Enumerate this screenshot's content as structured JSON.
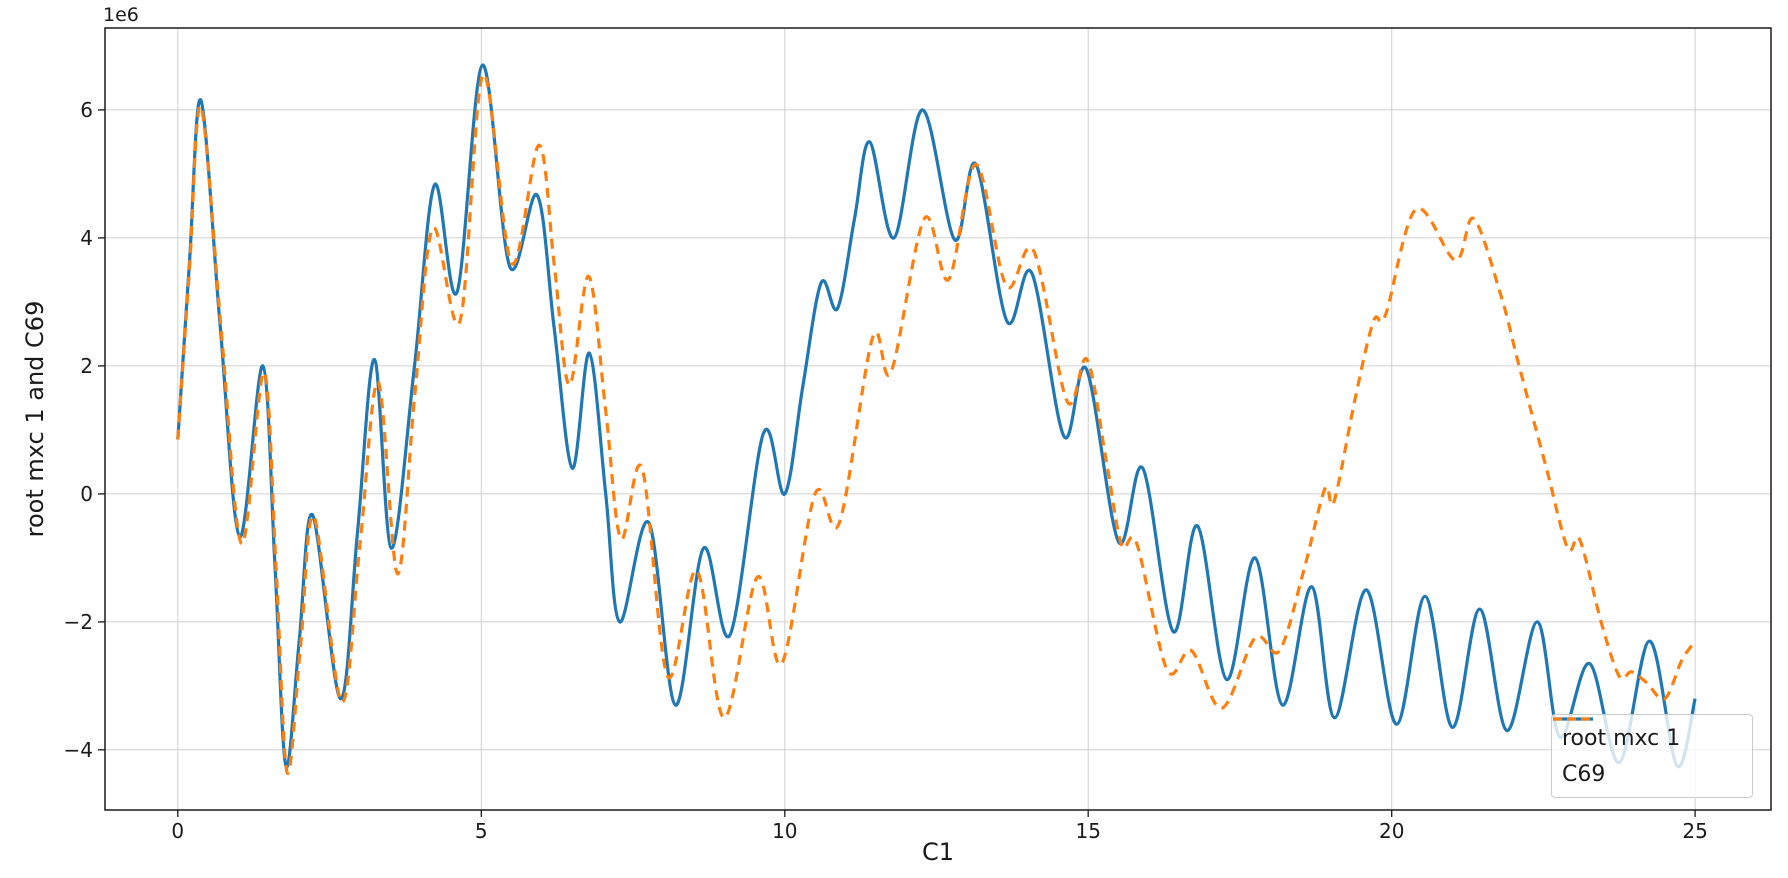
{
  "chart_data": {
    "type": "line",
    "title": "",
    "xlabel": "C1",
    "ylabel": "root mxc 1 and C69",
    "y_offset_label": "1e6",
    "y_values_in": "1e6",
    "xlim": [
      -1.2,
      26.25
    ],
    "ylim": [
      -4.94,
      7.28
    ],
    "grid": true,
    "legend_position": "lower right",
    "x_ticks": {
      "values": [
        0,
        5,
        10,
        15,
        20,
        25
      ],
      "labels": [
        "0",
        "5",
        "10",
        "15",
        "20",
        "25"
      ]
    },
    "y_ticks": {
      "values": [
        -4,
        -2,
        0,
        2,
        4,
        6
      ],
      "labels": [
        "−4",
        "−2",
        "0",
        "2",
        "4",
        "6"
      ]
    },
    "series": [
      {
        "name": "root mxc 1",
        "color": "#1f77b4",
        "line_style": "solid",
        "points": [
          [
            0,
            0.85
          ],
          [
            0.19,
            3.6
          ],
          [
            0.38,
            6.15
          ],
          [
            0.7,
            2.6
          ],
          [
            1.02,
            -0.67
          ],
          [
            1.4,
            2.0
          ],
          [
            1.6,
            -1.1
          ],
          [
            1.78,
            -4.25
          ],
          [
            2.0,
            -2.3
          ],
          [
            2.22,
            -0.33
          ],
          [
            2.68,
            -3.2
          ],
          [
            2.96,
            -0.6
          ],
          [
            3.24,
            2.1
          ],
          [
            3.52,
            -0.85
          ],
          [
            3.9,
            2.0
          ],
          [
            4.23,
            4.83
          ],
          [
            4.6,
            3.15
          ],
          [
            5.02,
            6.7
          ],
          [
            5.47,
            3.55
          ],
          [
            5.92,
            4.67
          ],
          [
            6.2,
            2.6
          ],
          [
            6.5,
            0.4
          ],
          [
            6.78,
            2.2
          ],
          [
            7.05,
            0.0
          ],
          [
            7.28,
            -2.0
          ],
          [
            7.76,
            -0.45
          ],
          [
            8.2,
            -3.3
          ],
          [
            8.66,
            -0.85
          ],
          [
            9.1,
            -2.2
          ],
          [
            9.65,
            0.95
          ],
          [
            10.0,
            0.0
          ],
          [
            10.3,
            1.7
          ],
          [
            10.6,
            3.3
          ],
          [
            10.87,
            2.9
          ],
          [
            11.15,
            4.3
          ],
          [
            11.4,
            5.5
          ],
          [
            11.8,
            4.0
          ],
          [
            12.27,
            6.0
          ],
          [
            12.8,
            3.97
          ],
          [
            13.15,
            5.15
          ],
          [
            13.66,
            2.7
          ],
          [
            14.07,
            3.45
          ],
          [
            14.6,
            0.9
          ],
          [
            14.97,
            1.95
          ],
          [
            15.5,
            -0.75
          ],
          [
            15.9,
            0.4
          ],
          [
            16.4,
            -2.15
          ],
          [
            16.8,
            -0.5
          ],
          [
            17.28,
            -2.9
          ],
          [
            17.75,
            -1.0
          ],
          [
            18.2,
            -3.3
          ],
          [
            18.68,
            -1.45
          ],
          [
            19.06,
            -3.5
          ],
          [
            19.58,
            -1.5
          ],
          [
            20.08,
            -3.6
          ],
          [
            20.55,
            -1.6
          ],
          [
            21.0,
            -3.65
          ],
          [
            21.45,
            -1.8
          ],
          [
            21.9,
            -3.7
          ],
          [
            22.4,
            -2.0
          ],
          [
            22.77,
            -3.8
          ],
          [
            23.26,
            -2.65
          ],
          [
            23.75,
            -4.2
          ],
          [
            24.25,
            -2.3
          ],
          [
            24.7,
            -4.25
          ],
          [
            25.0,
            -3.2
          ]
        ]
      },
      {
        "name": "C69",
        "color": "#ff7f0e",
        "line_style": "dashed",
        "points": [
          [
            0,
            0.85
          ],
          [
            0.19,
            3.5
          ],
          [
            0.38,
            6.05
          ],
          [
            0.72,
            2.5
          ],
          [
            1.05,
            -0.78
          ],
          [
            1.42,
            1.9
          ],
          [
            1.62,
            -1.2
          ],
          [
            1.8,
            -4.35
          ],
          [
            2.02,
            -2.4
          ],
          [
            2.24,
            -0.35
          ],
          [
            2.7,
            -3.25
          ],
          [
            3.0,
            -0.8
          ],
          [
            3.3,
            1.75
          ],
          [
            3.62,
            -1.25
          ],
          [
            3.9,
            1.5
          ],
          [
            4.2,
            4.15
          ],
          [
            4.65,
            2.7
          ],
          [
            5.03,
            6.55
          ],
          [
            5.5,
            3.6
          ],
          [
            5.95,
            5.45
          ],
          [
            6.2,
            3.6
          ],
          [
            6.45,
            1.7
          ],
          [
            6.77,
            3.4
          ],
          [
            7.05,
            1.3
          ],
          [
            7.3,
            -0.7
          ],
          [
            7.65,
            0.4
          ],
          [
            8.07,
            -2.85
          ],
          [
            8.55,
            -1.2
          ],
          [
            9.0,
            -3.5
          ],
          [
            9.55,
            -1.3
          ],
          [
            9.95,
            -2.65
          ],
          [
            10.5,
            0.0
          ],
          [
            10.9,
            -0.45
          ],
          [
            11.45,
            2.45
          ],
          [
            11.75,
            1.9
          ],
          [
            12.3,
            4.3
          ],
          [
            12.7,
            3.35
          ],
          [
            13.15,
            5.15
          ],
          [
            13.65,
            3.25
          ],
          [
            14.1,
            3.8
          ],
          [
            14.65,
            1.45
          ],
          [
            14.98,
            2.1
          ],
          [
            15.3,
            0.5
          ],
          [
            15.55,
            -0.8
          ],
          [
            15.8,
            -0.78
          ],
          [
            16.3,
            -2.75
          ],
          [
            16.7,
            -2.45
          ],
          [
            17.2,
            -3.35
          ],
          [
            17.75,
            -2.25
          ],
          [
            18.15,
            -2.45
          ],
          [
            18.55,
            -1.2
          ],
          [
            18.9,
            0.08
          ],
          [
            19.05,
            -0.12
          ],
          [
            19.4,
            1.5
          ],
          [
            19.7,
            2.7
          ],
          [
            19.9,
            2.8
          ],
          [
            20.4,
            4.45
          ],
          [
            21.05,
            3.65
          ],
          [
            21.35,
            4.3
          ],
          [
            21.8,
            3.1
          ],
          [
            22.1,
            2.0
          ],
          [
            22.55,
            0.4
          ],
          [
            22.9,
            -0.85
          ],
          [
            23.1,
            -0.72
          ],
          [
            23.45,
            -2.0
          ],
          [
            23.75,
            -2.85
          ],
          [
            23.95,
            -2.78
          ],
          [
            24.2,
            -2.95
          ],
          [
            24.5,
            -3.2
          ],
          [
            24.78,
            -2.6
          ],
          [
            25.0,
            -2.3
          ]
        ]
      }
    ],
    "colors": {
      "grid": "#d0d0d0",
      "spine": "#1a1a1a",
      "text": "#1a1a1a",
      "legend_border": "#cccccc"
    }
  }
}
